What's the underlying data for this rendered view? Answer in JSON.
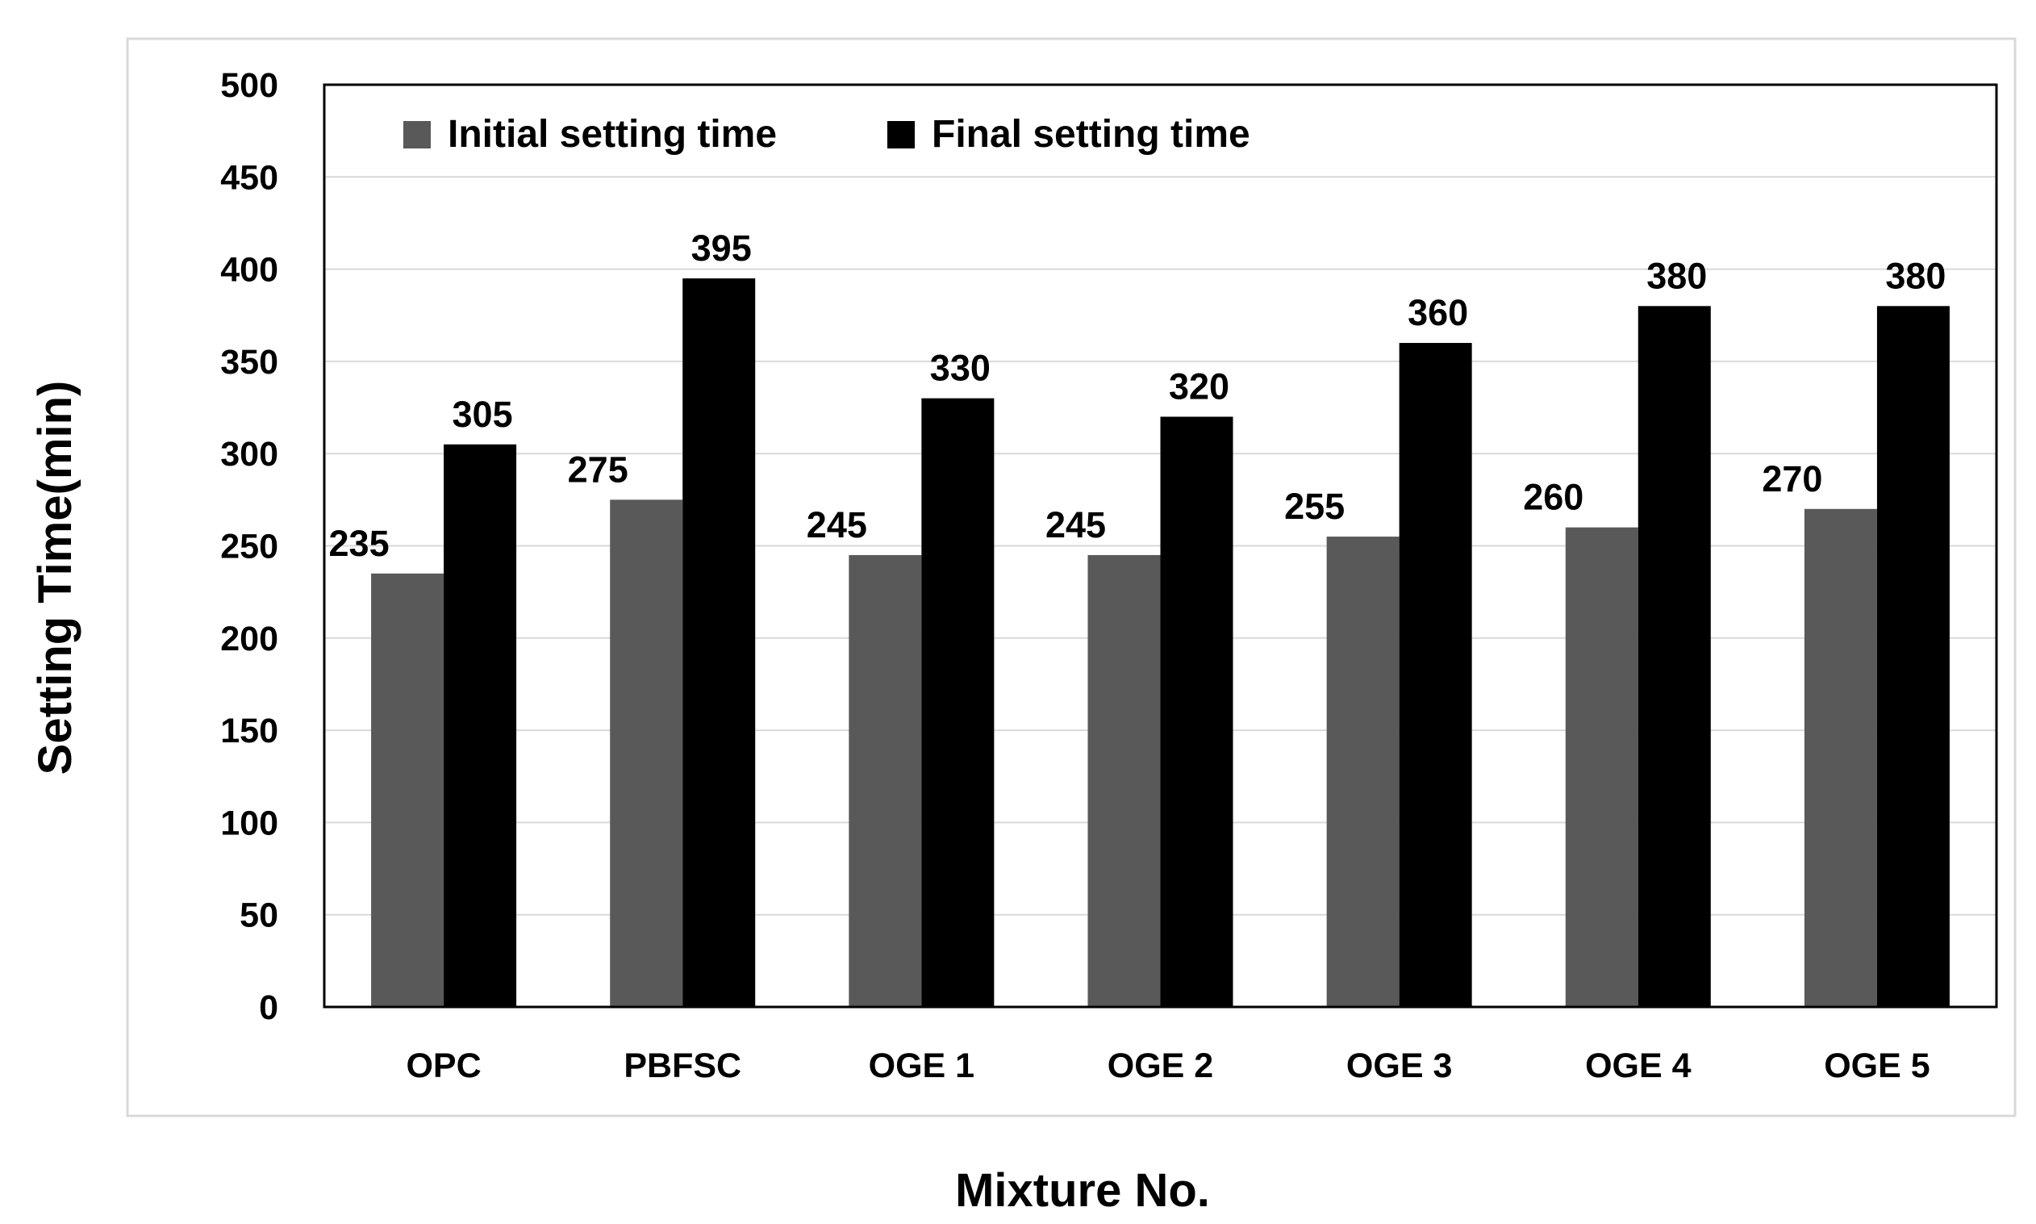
{
  "chart_data": {
    "type": "bar",
    "title": "",
    "xlabel": "Mixture No.",
    "ylabel": "Setting Time(min)",
    "categories": [
      "OPC",
      "PBFSC",
      "OGE 1",
      "OGE 2",
      "OGE 3",
      "OGE 4",
      "OGE 5"
    ],
    "series": [
      {
        "name": "Initial setting time",
        "values": [
          235,
          275,
          245,
          245,
          255,
          260,
          270
        ],
        "color": "#595959"
      },
      {
        "name": "Final setting time",
        "values": [
          305,
          395,
          330,
          320,
          360,
          380,
          380
        ],
        "color": "#000000"
      }
    ],
    "ylim": [
      0,
      500
    ],
    "yticks": [
      0,
      50,
      100,
      150,
      200,
      250,
      300,
      350,
      400,
      450,
      500
    ],
    "grid": true,
    "legend_position": "top-left",
    "data_labels": true
  }
}
